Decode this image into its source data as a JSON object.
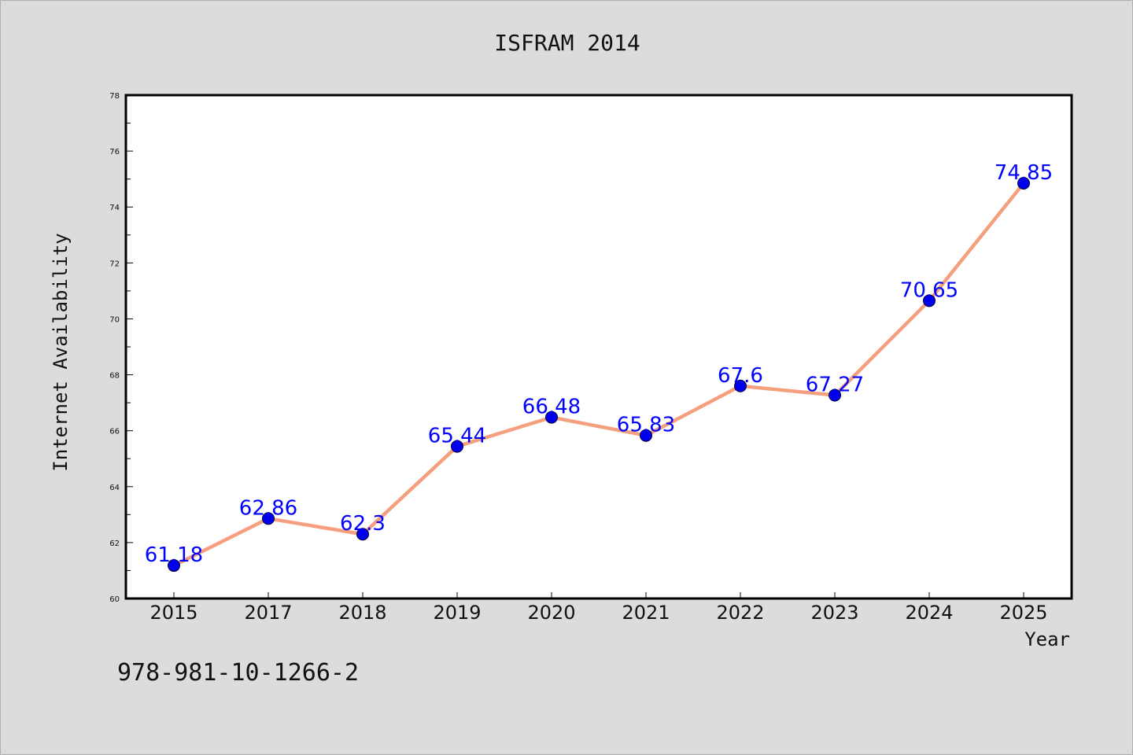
{
  "chart_data": {
    "type": "line",
    "title": "ISFRAM 2014",
    "xlabel": "Year",
    "ylabel": "Internet Availability",
    "categories": [
      "2015",
      "2017",
      "2018",
      "2019",
      "2020",
      "2021",
      "2022",
      "2023",
      "2024",
      "2025"
    ],
    "series": [
      {
        "values": [
          61.18,
          62.86,
          62.3,
          65.44,
          66.48,
          65.83,
          67.6,
          67.27,
          70.65,
          74.85
        ]
      }
    ],
    "data_labels": [
      "61.18",
      "62.86",
      "62.3",
      "65.44",
      "66.48",
      "65.83",
      "67.6",
      "67.27",
      "70.65",
      "74.85"
    ],
    "ylim": [
      60,
      78
    ],
    "yticks": [
      60,
      62,
      64,
      66,
      68,
      70,
      72,
      74,
      76,
      78
    ],
    "grid": false,
    "legend": "none",
    "colors": {
      "line": "#f4a07e",
      "marker": "#0000ee",
      "label": "#0000ff",
      "background": "#dcdcdc",
      "plot_background": "#ffffff"
    }
  },
  "footer": {
    "isbn": "978-981-10-1266-2"
  }
}
